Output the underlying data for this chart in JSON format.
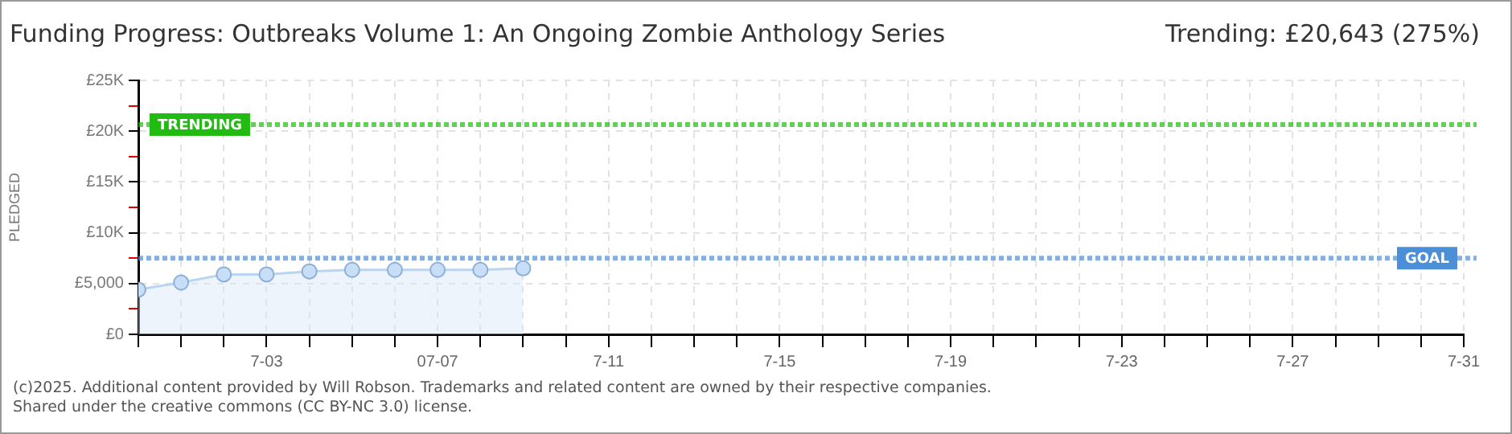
{
  "chart_data": {
    "type": "area",
    "title": "Funding Progress: Outbreaks Volume 1: An Ongoing Zombie Anthology Series",
    "subtitle": "Trending: £20,643 (275%)",
    "ylabel": "PLEDGED",
    "x": [
      "--06-30",
      "--07-01",
      "--07-02",
      "--07-03",
      "--07-04",
      "--07-05",
      "--07-06",
      "--07-07",
      "--07-08",
      "--07-09"
    ],
    "series": [
      {
        "color": "#b9d5f2",
        "values": [
          4400,
          5100,
          5900,
          5900,
          6200,
          6350,
          6350,
          6350,
          6350,
          6500
        ]
      }
    ],
    "marker": "circle",
    "grid": true,
    "legend": false,
    "xlim": [
      "--06-30",
      "--07-31"
    ],
    "xticks": [
      {
        "value": "--06-30",
        "label": null
      },
      {
        "value": "--07-01",
        "label": null
      },
      {
        "value": "--07-02",
        "label": null
      },
      {
        "value": "--07-03",
        "label": "7-03"
      },
      {
        "value": "--07-04",
        "label": null
      },
      {
        "value": "--07-05",
        "label": null
      },
      {
        "value": "--07-06",
        "label": null
      },
      {
        "value": "--07-07",
        "label": "07-07"
      },
      {
        "value": "--07-08",
        "label": null
      },
      {
        "value": "--07-09",
        "label": null
      },
      {
        "value": "--07-10",
        "label": null
      },
      {
        "value": "--07-11",
        "label": "7-11"
      },
      {
        "value": "--07-12",
        "label": null
      },
      {
        "value": "--07-13",
        "label": null
      },
      {
        "value": "--07-14",
        "label": null
      },
      {
        "value": "--07-15",
        "label": "7-15"
      },
      {
        "value": "--07-16",
        "label": null
      },
      {
        "value": "--07-17",
        "label": null
      },
      {
        "value": "--07-18",
        "label": null
      },
      {
        "value": "--07-19",
        "label": "7-19"
      },
      {
        "value": "--07-20",
        "label": null
      },
      {
        "value": "--07-21",
        "label": null
      },
      {
        "value": "--07-22",
        "label": null
      },
      {
        "value": "--07-23",
        "label": "7-23"
      },
      {
        "value": "--07-24",
        "label": null
      },
      {
        "value": "--07-25",
        "label": null
      },
      {
        "value": "--07-26",
        "label": null
      },
      {
        "value": "--07-27",
        "label": "7-27"
      },
      {
        "value": "--07-28",
        "label": null
      },
      {
        "value": "--07-29",
        "label": null
      },
      {
        "value": "--07-30",
        "label": null
      },
      {
        "value": "--07-31",
        "label": "7-31"
      }
    ],
    "ylim": [
      0,
      25000
    ],
    "yticks": [
      {
        "value": 0,
        "label": "£0"
      },
      {
        "value": 2500,
        "label": null
      },
      {
        "value": 5000,
        "label": "£5,000"
      },
      {
        "value": 7500,
        "label": null
      },
      {
        "value": 10000,
        "label": "£10K"
      },
      {
        "value": 12500,
        "label": null
      },
      {
        "value": 15000,
        "label": "£15K"
      },
      {
        "value": 17500,
        "label": null
      },
      {
        "value": 20000,
        "label": "£20K"
      },
      {
        "value": 22500,
        "label": null
      },
      {
        "value": 25000,
        "label": "£25K"
      }
    ],
    "ref_lines": [
      {
        "axis": "y",
        "value": 20643,
        "label": "TRENDING",
        "color": "#22bb11",
        "line_style": "dotted"
      },
      {
        "axis": "y",
        "value": 7500,
        "label": "GOAL",
        "color": "#4a8fd8",
        "line_style": "dotted"
      }
    ],
    "annotations": [
      "(c)2025. Additional content provided by Will Robson. Trademarks and related content are owned by their respective companies.",
      "Shared under the creative commons (CC BY-NC 3.0) license."
    ]
  }
}
